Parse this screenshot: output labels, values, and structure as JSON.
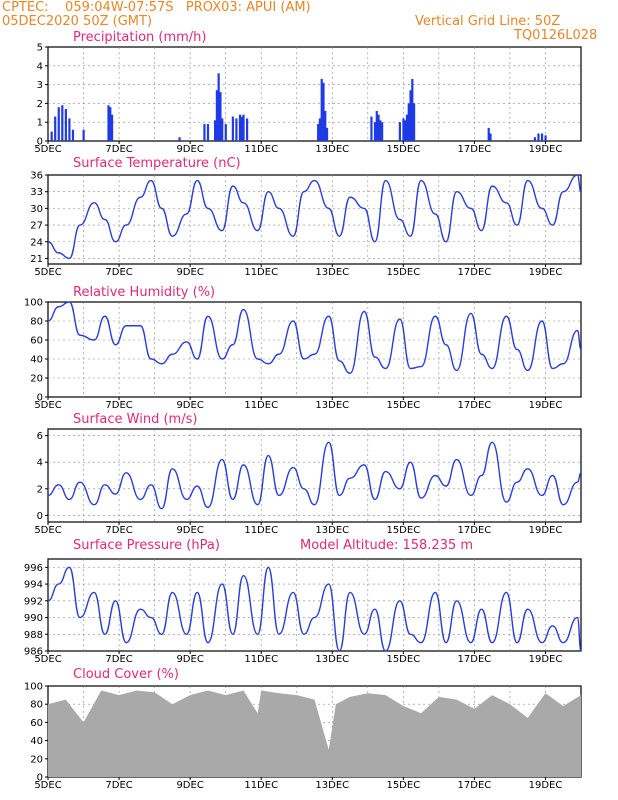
{
  "header": {
    "line1": "CPTEC:    059:04W-07:57S   PROX03: APUI (AM)",
    "line2": "05DEC2020 50Z (GMT)",
    "right1": "Vertical Grid Line: 50Z",
    "right2": "TQ0126L028"
  },
  "colors": {
    "line": "#2a3fd6",
    "bar": "#1f3be6",
    "cloud": "#a9a9a9",
    "title": "#e0297a",
    "header": "#e8862a"
  },
  "x_ticks": [
    "5DEC",
    "7DEC",
    "9DEC",
    "11DEC",
    "13DEC",
    "15DEC",
    "17DEC",
    "19DEC"
  ],
  "chart_data": [
    {
      "type": "bar",
      "title": "Precipitation (mm/h)",
      "ylim": [
        0,
        5
      ],
      "yticks": [
        0,
        1,
        2,
        3,
        4,
        5
      ],
      "x": [
        5.1,
        5.2,
        5.3,
        5.4,
        5.5,
        5.6,
        5.7,
        6.0,
        6.7,
        6.75,
        6.8,
        8.7,
        9.4,
        9.5,
        9.7,
        9.75,
        9.8,
        9.85,
        9.9,
        10.0,
        10.2,
        10.3,
        10.4,
        10.45,
        10.5,
        10.6,
        12.6,
        12.65,
        12.7,
        12.75,
        12.8,
        12.85,
        14.1,
        14.2,
        14.25,
        14.3,
        14.35,
        14.4,
        14.9,
        15.0,
        15.05,
        15.1,
        15.15,
        15.2,
        15.25,
        15.3,
        17.4,
        17.45,
        18.7,
        18.8,
        18.9,
        19.0
      ],
      "values": [
        0.5,
        1.3,
        1.8,
        1.9,
        1.7,
        1.2,
        0.6,
        0.6,
        1.9,
        1.8,
        1.4,
        0.2,
        0.9,
        0.9,
        1.1,
        2.7,
        3.6,
        2.6,
        1.2,
        0.9,
        1.3,
        1.2,
        1.4,
        1.3,
        1.4,
        1.2,
        0.9,
        1.2,
        3.3,
        3.1,
        1.6,
        0.7,
        1.3,
        1.0,
        1.6,
        1.4,
        1.1,
        1.0,
        1.0,
        1.2,
        1.1,
        1.4,
        2.0,
        2.7,
        3.3,
        2.0,
        0.7,
        0.4,
        0.2,
        0.4,
        0.4,
        0.3
      ]
    },
    {
      "type": "line",
      "title": "Surface Temperature (nC)",
      "ylim": [
        20,
        36
      ],
      "yticks": [
        21,
        24,
        27,
        30,
        33,
        36
      ],
      "x": [
        5.0,
        5.3,
        5.6,
        5.9,
        6.3,
        6.6,
        6.9,
        7.2,
        7.6,
        7.9,
        8.2,
        8.5,
        8.9,
        9.2,
        9.5,
        9.9,
        10.2,
        10.5,
        10.9,
        11.2,
        11.5,
        11.9,
        12.2,
        12.5,
        12.9,
        13.2,
        13.5,
        13.9,
        14.2,
        14.5,
        14.9,
        15.2,
        15.5,
        15.9,
        16.2,
        16.5,
        16.9,
        17.2,
        17.5,
        17.9,
        18.2,
        18.5,
        18.9,
        19.2,
        19.5,
        19.9,
        20.0
      ],
      "values": [
        24,
        22,
        21,
        27,
        31,
        28,
        24,
        27,
        32,
        35,
        30,
        25,
        29,
        35,
        30,
        26,
        34,
        31,
        26,
        33,
        30,
        25,
        33,
        35,
        30,
        25,
        32,
        30,
        24,
        35,
        28,
        25,
        35,
        29,
        24,
        33,
        30,
        26,
        34,
        31,
        27,
        35,
        30,
        27,
        33,
        36,
        33
      ]
    },
    {
      "type": "line",
      "title": "Relative Humidity (%)",
      "ylim": [
        0,
        100
      ],
      "yticks": [
        0,
        20,
        40,
        60,
        80,
        100
      ],
      "x": [
        5.0,
        5.3,
        5.6,
        5.9,
        6.3,
        6.6,
        6.9,
        7.2,
        7.6,
        7.9,
        8.2,
        8.5,
        8.9,
        9.2,
        9.5,
        9.9,
        10.2,
        10.5,
        10.9,
        11.2,
        11.5,
        11.9,
        12.2,
        12.5,
        12.9,
        13.2,
        13.5,
        13.9,
        14.2,
        14.5,
        14.9,
        15.2,
        15.5,
        15.9,
        16.2,
        16.5,
        16.9,
        17.2,
        17.5,
        17.9,
        18.2,
        18.5,
        18.9,
        19.2,
        19.5,
        19.9,
        20.0
      ],
      "values": [
        80,
        95,
        100,
        65,
        60,
        85,
        55,
        75,
        75,
        40,
        35,
        45,
        58,
        40,
        85,
        40,
        55,
        92,
        40,
        35,
        45,
        80,
        40,
        45,
        85,
        38,
        25,
        90,
        42,
        30,
        82,
        30,
        32,
        85,
        55,
        28,
        88,
        45,
        30,
        85,
        50,
        28,
        80,
        30,
        35,
        70,
        50
      ]
    },
    {
      "type": "line",
      "title": "Surface Wind (m/s)",
      "ylim": [
        -0.5,
        6.5
      ],
      "yticks": [
        0,
        2,
        4,
        6
      ],
      "x": [
        5.0,
        5.3,
        5.6,
        5.9,
        6.3,
        6.6,
        6.9,
        7.2,
        7.6,
        7.9,
        8.2,
        8.5,
        8.9,
        9.2,
        9.5,
        9.9,
        10.2,
        10.5,
        10.9,
        11.2,
        11.5,
        11.9,
        12.2,
        12.5,
        12.9,
        13.2,
        13.5,
        13.9,
        14.2,
        14.5,
        14.9,
        15.2,
        15.5,
        15.9,
        16.2,
        16.5,
        16.9,
        17.2,
        17.5,
        17.9,
        18.2,
        18.5,
        18.9,
        19.2,
        19.5,
        19.9,
        20.0
      ],
      "values": [
        1.5,
        2.3,
        1.2,
        2.5,
        0.8,
        2.3,
        1.6,
        3.2,
        1.2,
        2.3,
        0.5,
        3.5,
        1.2,
        2.2,
        0.6,
        4.2,
        1.2,
        3.8,
        0.8,
        4.5,
        1.5,
        3.6,
        2.0,
        0.8,
        5.5,
        1.5,
        2.8,
        3.8,
        1.2,
        3.3,
        2.0,
        4.0,
        1.3,
        3.0,
        2.2,
        4.2,
        1.5,
        3.0,
        5.5,
        1.0,
        2.5,
        3.5,
        1.5,
        3.0,
        0.8,
        2.5,
        3.2
      ]
    },
    {
      "type": "line",
      "title": "Surface Pressure (hPa)",
      "ylim": [
        986,
        997
      ],
      "yticks": [
        986,
        988,
        990,
        992,
        994,
        996
      ],
      "x": [
        5.0,
        5.3,
        5.6,
        5.9,
        6.3,
        6.6,
        6.9,
        7.2,
        7.6,
        7.9,
        8.2,
        8.5,
        8.9,
        9.2,
        9.5,
        9.9,
        10.2,
        10.5,
        10.9,
        11.2,
        11.5,
        11.9,
        12.2,
        12.5,
        12.9,
        13.2,
        13.5,
        13.9,
        14.2,
        14.5,
        14.9,
        15.2,
        15.5,
        15.9,
        16.2,
        16.5,
        16.9,
        17.2,
        17.5,
        17.9,
        18.2,
        18.5,
        18.9,
        19.2,
        19.5,
        19.9,
        20.0
      ],
      "values": [
        992,
        994,
        996,
        990,
        993,
        988,
        992,
        987,
        991,
        990,
        988,
        993,
        988,
        993,
        987,
        994,
        988,
        995,
        988,
        996,
        988,
        993,
        988,
        990,
        994,
        986,
        993,
        988,
        991,
        986,
        992,
        988,
        987,
        993,
        987,
        992,
        987,
        991,
        987,
        993,
        987,
        991,
        987,
        989,
        987,
        990,
        986
      ]
    },
    {
      "type": "area",
      "title": "Cloud Cover (%)",
      "ylim": [
        0,
        100
      ],
      "yticks": [
        0,
        20,
        40,
        60,
        80,
        100
      ],
      "x": [
        5.0,
        5.5,
        6.0,
        6.5,
        7.0,
        7.5,
        8.0,
        8.5,
        9.0,
        9.5,
        10.0,
        10.5,
        10.9,
        11.0,
        11.5,
        12.0,
        12.5,
        12.9,
        13.1,
        13.5,
        14.0,
        14.5,
        15.0,
        15.5,
        16.0,
        16.5,
        17.0,
        17.5,
        18.0,
        18.5,
        19.0,
        19.5,
        20.0
      ],
      "values": [
        80,
        85,
        60,
        95,
        90,
        95,
        93,
        80,
        90,
        95,
        90,
        95,
        70,
        95,
        92,
        90,
        85,
        30,
        80,
        88,
        92,
        90,
        78,
        70,
        88,
        85,
        75,
        90,
        80,
        65,
        92,
        78,
        90
      ]
    }
  ],
  "titles": {
    "model_altitude": "Model Altitude: 158.235 m"
  }
}
